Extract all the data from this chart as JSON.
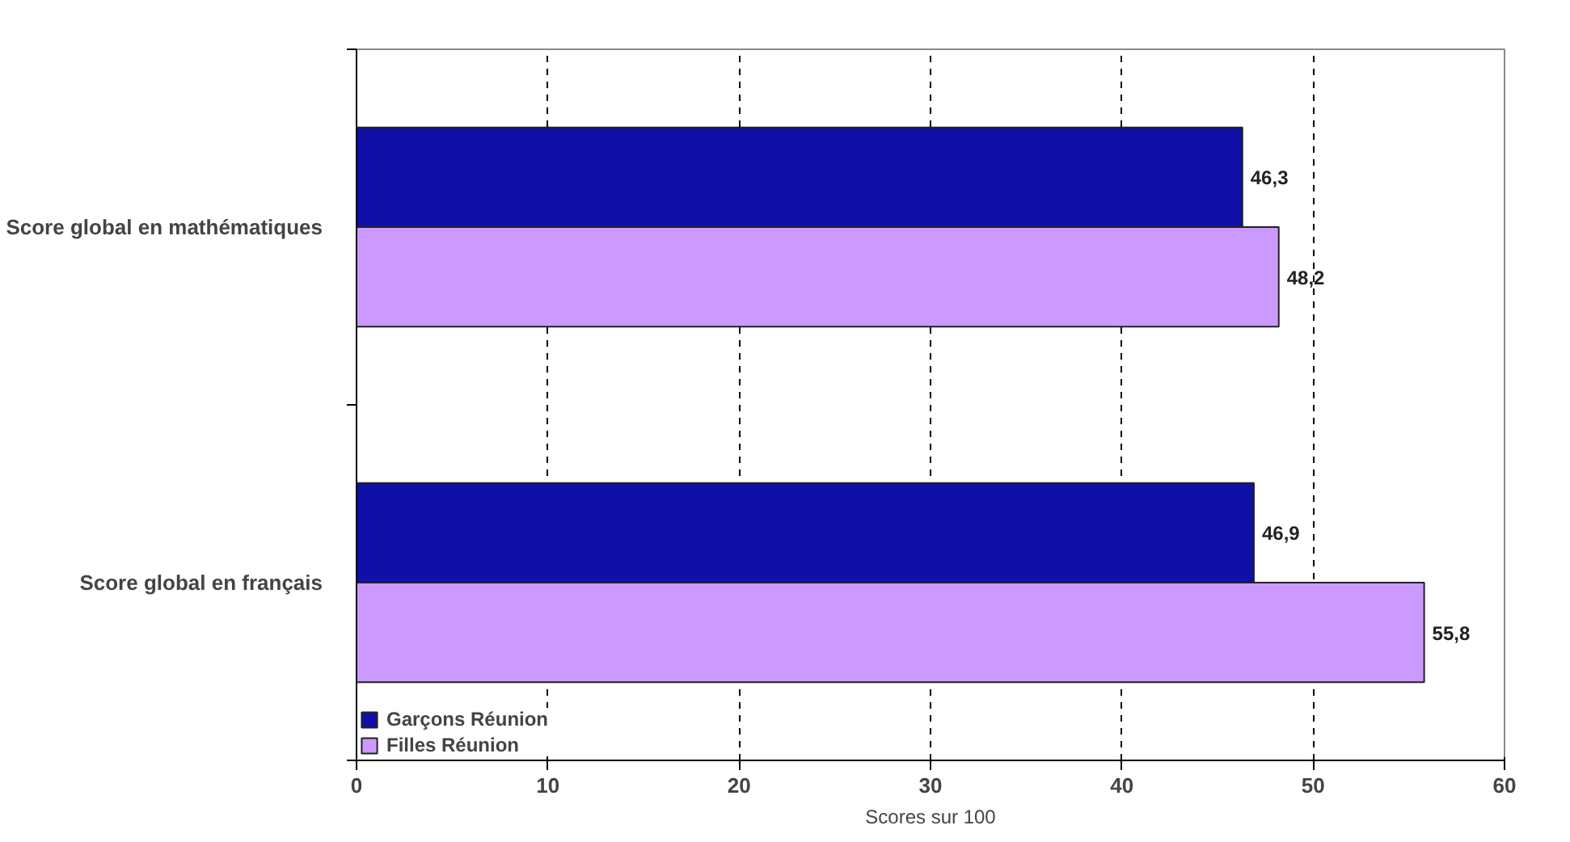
{
  "chart_data": {
    "type": "bar",
    "orientation": "horizontal",
    "categories": [
      "Score global en mathématiques",
      "Score global en français"
    ],
    "series": [
      {
        "name": "Garçons Réunion",
        "color": "#1010a8",
        "values": [
          46.3,
          46.9
        ],
        "value_labels": [
          "46,3",
          "46,9"
        ]
      },
      {
        "name": "Filles Réunion",
        "color": "#cc99ff",
        "values": [
          48.2,
          55.8
        ],
        "value_labels": [
          "48,2",
          "55,8"
        ]
      }
    ],
    "xlabel": "Scores sur 100",
    "xlim": [
      0,
      60
    ],
    "xticks": [
      0,
      10,
      20,
      30,
      40,
      50,
      60
    ],
    "grid": "x",
    "legend": "bottom left"
  }
}
